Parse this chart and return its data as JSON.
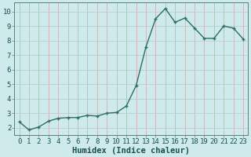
{
  "x": [
    0,
    1,
    2,
    3,
    4,
    5,
    6,
    7,
    8,
    9,
    10,
    11,
    12,
    13,
    14,
    15,
    16,
    17,
    18,
    19,
    20,
    21,
    22,
    23
  ],
  "y": [
    2.4,
    1.85,
    2.05,
    2.45,
    2.65,
    2.7,
    2.7,
    2.85,
    2.8,
    3.0,
    3.05,
    3.5,
    4.9,
    7.55,
    9.5,
    10.2,
    9.25,
    9.55,
    8.85,
    8.15,
    8.15,
    9.0,
    8.85,
    8.1
  ],
  "xlabel": "Humidex (Indice chaleur)",
  "xlim": [
    -0.5,
    23.5
  ],
  "ylim": [
    1.5,
    10.6
  ],
  "yticks": [
    2,
    3,
    4,
    5,
    6,
    7,
    8,
    9,
    10
  ],
  "xticks": [
    0,
    1,
    2,
    3,
    4,
    5,
    6,
    7,
    8,
    9,
    10,
    11,
    12,
    13,
    14,
    15,
    16,
    17,
    18,
    19,
    20,
    21,
    22,
    23
  ],
  "line_color": "#2d7060",
  "marker_color": "#2d7060",
  "bg_color": "#ceeaea",
  "vgrid_color": "#c8a8a8",
  "hgrid_color": "#b8c8c8",
  "xlabel_fontsize": 7.5,
  "tick_fontsize": 6.5,
  "line_width": 1.0,
  "marker_size": 2.5
}
